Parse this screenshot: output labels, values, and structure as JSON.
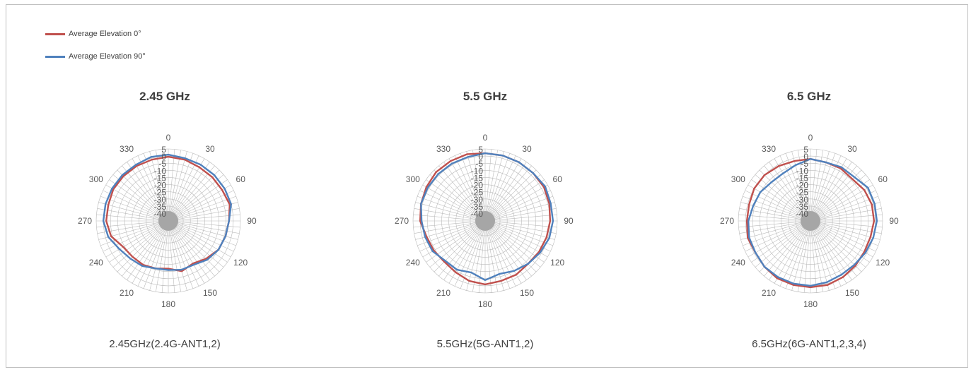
{
  "legend": {
    "items": [
      {
        "label": "Average Elevation 0°",
        "color": "#c0504d"
      },
      {
        "label": "Average Elevation 90°",
        "color": "#4f81bd"
      }
    ]
  },
  "chart_data": [
    {
      "type": "radar",
      "title": "2.45 GHz",
      "caption": "2.45GHz(2.4G-ANT1,2)",
      "r_ticks": [
        "5",
        "0",
        "-5",
        "-10",
        "-15",
        "-20",
        "-25",
        "-30",
        "-35",
        "-40"
      ],
      "rlim": [
        -40,
        5
      ],
      "theta_ticks": [
        "0",
        "30",
        "60",
        "90",
        "120",
        "150",
        "180",
        "210",
        "240",
        "270",
        "300",
        "330"
      ],
      "grid": true,
      "series": [
        {
          "name": "Average Elevation 0°",
          "color": "#c0504d",
          "theta": [
            0,
            15,
            30,
            45,
            60,
            75,
            90,
            105,
            120,
            135,
            150,
            165,
            180,
            195,
            210,
            225,
            240,
            255,
            270,
            285,
            300,
            315,
            330,
            345
          ],
          "values": [
            -0.5,
            -1,
            -2,
            -2,
            -2,
            -1,
            -3,
            -4,
            -5,
            -8,
            -11,
            -9,
            -12,
            -11,
            -10,
            -10,
            -9,
            -4,
            -2,
            -2,
            -1,
            -1,
            -1,
            -1
          ]
        },
        {
          "name": "Average Elevation 90°",
          "color": "#4f81bd",
          "theta": [
            0,
            15,
            30,
            45,
            60,
            75,
            90,
            105,
            120,
            135,
            150,
            165,
            180,
            195,
            210,
            225,
            240,
            255,
            270,
            285,
            300,
            315,
            330,
            345
          ],
          "values": [
            1,
            0,
            0,
            0,
            0,
            0,
            -3,
            -4,
            -5,
            -7,
            -10,
            -10,
            -11,
            -11,
            -9,
            -8,
            -6,
            -2,
            0,
            0,
            0,
            0,
            0,
            1
          ]
        }
      ]
    },
    {
      "type": "radar",
      "title": "5.5 GHz",
      "caption": "5.5GHz(5G-ANT1,2)",
      "r_ticks": [
        "5",
        "0",
        "-5",
        "-10",
        "-15",
        "-20",
        "-25",
        "-30",
        "-35",
        "-40"
      ],
      "rlim": [
        -40,
        5
      ],
      "theta_ticks": [
        "0",
        "30",
        "60",
        "90",
        "120",
        "150",
        "180",
        "210",
        "240",
        "270",
        "300",
        "330"
      ],
      "grid": true,
      "series": [
        {
          "name": "Average Elevation 0°",
          "color": "#c0504d",
          "theta": [
            0,
            15,
            30,
            45,
            60,
            75,
            90,
            105,
            120,
            135,
            150,
            165,
            180,
            195,
            210,
            225,
            240,
            255,
            270,
            285,
            300,
            315,
            330,
            345
          ],
          "values": [
            2,
            2,
            2,
            2,
            2,
            1,
            0,
            -1,
            -2,
            -3,
            -2,
            -2,
            -1,
            -2,
            -4,
            -5,
            -4,
            -3,
            0,
            1,
            2,
            3,
            3,
            3
          ]
        },
        {
          "name": "Average Elevation 90°",
          "color": "#4f81bd",
          "theta": [
            0,
            15,
            30,
            45,
            60,
            75,
            90,
            105,
            120,
            135,
            150,
            165,
            180,
            195,
            210,
            225,
            240,
            255,
            270,
            285,
            300,
            315,
            330,
            345
          ],
          "values": [
            2,
            2,
            2,
            2,
            3,
            2,
            2,
            1,
            -1,
            -3,
            -5,
            -7,
            -4,
            -8,
            -6,
            -6,
            -3,
            -2,
            -1,
            1,
            1,
            1,
            1,
            1
          ]
        }
      ]
    },
    {
      "type": "radar",
      "title": "6.5 GHz",
      "caption": "6.5GHz(6G-ANT1,2,3,4)",
      "r_ticks": [
        "5",
        "0",
        "-5",
        "-10",
        "-15",
        "-20",
        "-25",
        "-30",
        "-35",
        "-40"
      ],
      "rlim": [
        -40,
        5
      ],
      "theta_ticks": [
        "0",
        "30",
        "60",
        "90",
        "120",
        "150",
        "180",
        "210",
        "240",
        "270",
        "300",
        "330"
      ],
      "grid": true,
      "series": [
        {
          "name": "Average Elevation 0°",
          "color": "#c0504d",
          "theta": [
            0,
            15,
            30,
            45,
            60,
            75,
            90,
            105,
            120,
            135,
            150,
            165,
            180,
            195,
            210,
            225,
            240,
            255,
            270,
            285,
            300,
            315,
            330,
            345
          ],
          "values": [
            -2,
            -3,
            -3,
            -4,
            -2,
            -1,
            -1,
            -2,
            -2,
            -1,
            0,
            1,
            1,
            1,
            1,
            0,
            -1,
            0,
            -1,
            -1,
            0,
            0,
            -1,
            -2
          ]
        },
        {
          "name": "Average Elevation 90°",
          "color": "#4f81bd",
          "theta": [
            0,
            15,
            30,
            45,
            60,
            75,
            90,
            105,
            120,
            135,
            150,
            165,
            180,
            195,
            210,
            225,
            240,
            255,
            270,
            285,
            300,
            315,
            330,
            345
          ],
          "values": [
            -2,
            -3,
            -2,
            -2,
            1,
            1,
            1,
            0,
            -1,
            -2,
            -2,
            -1,
            0,
            0,
            0,
            0,
            -1,
            -1,
            -2,
            -4,
            -5,
            -7,
            -7,
            -5
          ]
        }
      ]
    }
  ]
}
